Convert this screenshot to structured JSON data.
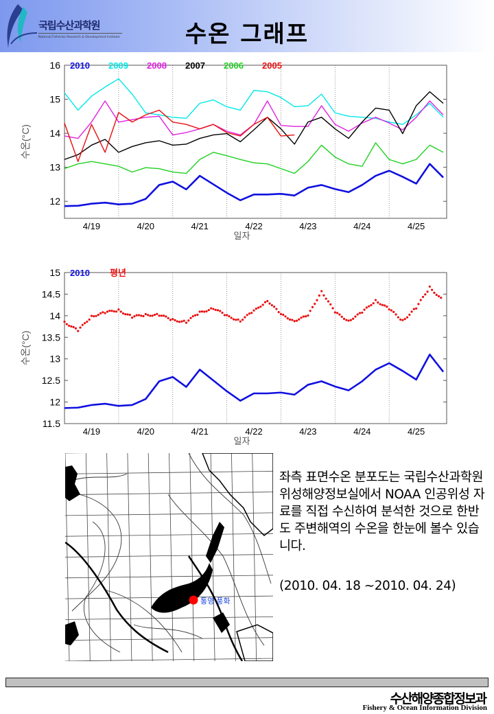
{
  "header": {
    "logo_name": "국립수산과학원",
    "logo_subtitle": "National Fisheries Research & Development Institute",
    "title": "수온 그래프"
  },
  "chart_data": [
    {
      "type": "line",
      "xlabel": "일자",
      "ylabel": "수온(°C)",
      "ylim": [
        11.5,
        16
      ],
      "yticks": [
        12,
        13,
        14,
        15,
        16
      ],
      "xtick_labels": [
        "4/19",
        "4/20",
        "4/21",
        "4/22",
        "4/23",
        "4/24",
        "4/25"
      ],
      "grid": "vertical dotted at day boundaries",
      "legend_placement": "top-left",
      "x": [
        "04-19 00:00",
        "04-19 06:00",
        "04-19 12:00",
        "04-19 18:00",
        "04-20 00:00",
        "04-20 06:00",
        "04-20 12:00",
        "04-20 18:00",
        "04-21 00:00",
        "04-21 06:00",
        "04-21 12:00",
        "04-21 18:00",
        "04-22 00:00",
        "04-22 06:00",
        "04-22 12:00",
        "04-22 18:00",
        "04-23 00:00",
        "04-23 06:00",
        "04-23 12:00",
        "04-23 18:00",
        "04-24 00:00",
        "04-24 06:00",
        "04-24 12:00",
        "04-24 18:00",
        "04-25 00:00",
        "04-25 06:00",
        "04-25 12:00",
        "04-25 18:00",
        "04-26 00:00"
      ],
      "series": [
        {
          "name": "2009",
          "color": "#00e8e8",
          "values": [
            15.19,
            14.68,
            15.09,
            15.36,
            15.6,
            15.15,
            14.6,
            14.54,
            14.47,
            14.44,
            14.88,
            14.98,
            14.78,
            14.68,
            15.26,
            15.22,
            15.05,
            14.78,
            14.81,
            15.15,
            14.6,
            14.5,
            14.47,
            14.44,
            14.33,
            14.26,
            14.54,
            14.88,
            14.47
          ]
        },
        {
          "name": "2008",
          "color": "#e020e0",
          "values": [
            13.92,
            13.85,
            14.33,
            14.95,
            14.33,
            14.4,
            14.47,
            14.5,
            13.95,
            14.02,
            14.13,
            14.26,
            14.06,
            13.95,
            14.26,
            14.95,
            14.23,
            14.2,
            14.2,
            14.81,
            14.26,
            14.06,
            14.3,
            14.47,
            14.3,
            14.1,
            14.47,
            14.95,
            14.54
          ]
        },
        {
          "name": "2007",
          "color": "#000000",
          "values": [
            13.23,
            13.37,
            13.65,
            13.82,
            13.44,
            13.61,
            13.72,
            13.78,
            13.65,
            13.68,
            13.85,
            13.95,
            13.99,
            13.75,
            14.1,
            14.47,
            14.13,
            13.68,
            14.33,
            14.47,
            14.13,
            13.85,
            14.33,
            14.74,
            14.68,
            13.99,
            14.81,
            15.22,
            14.88
          ]
        },
        {
          "name": "2006",
          "color": "#20d020",
          "values": [
            12.96,
            13.1,
            13.17,
            13.1,
            13.03,
            12.86,
            12.99,
            12.96,
            12.86,
            12.82,
            13.23,
            13.44,
            13.34,
            13.23,
            13.13,
            13.1,
            12.96,
            12.82,
            13.17,
            13.65,
            13.3,
            13.1,
            13.03,
            13.72,
            13.23,
            13.1,
            13.23,
            13.65,
            13.44
          ]
        },
        {
          "name": "2005",
          "color": "#e81010",
          "values": [
            14.3,
            13.17,
            14.26,
            13.44,
            14.61,
            14.33,
            14.54,
            14.68,
            14.33,
            14.26,
            14.13,
            14.26,
            14.02,
            13.92,
            14.26,
            14.47,
            13.92,
            13.95,
            null,
            null,
            null,
            null,
            null,
            null,
            null,
            null,
            null,
            null,
            null
          ]
        },
        {
          "name": "2010",
          "color": "#1010e0",
          "values": [
            11.86,
            11.87,
            11.93,
            11.96,
            11.91,
            11.93,
            12.07,
            12.48,
            12.58,
            12.35,
            12.75,
            12.5,
            12.25,
            12.03,
            12.2,
            12.2,
            12.22,
            12.17,
            12.4,
            12.48,
            12.36,
            12.27,
            12.48,
            12.75,
            12.9,
            12.72,
            12.52,
            13.1,
            12.7
          ]
        }
      ]
    },
    {
      "type": "line",
      "xlabel": "일자",
      "ylabel": "수온(°C)",
      "ylim": [
        11.5,
        15
      ],
      "yticks": [
        11.5,
        12,
        12.5,
        13,
        13.5,
        14,
        14.5,
        15
      ],
      "xtick_labels": [
        "4/19",
        "4/20",
        "4/21",
        "4/22",
        "4/23",
        "4/24",
        "4/25"
      ],
      "grid": "vertical dotted at day boundaries",
      "legend_placement": "top-left",
      "x": [
        "04-19 00:00",
        "04-19 06:00",
        "04-19 12:00",
        "04-19 18:00",
        "04-20 00:00",
        "04-20 06:00",
        "04-20 12:00",
        "04-20 18:00",
        "04-21 00:00",
        "04-21 06:00",
        "04-21 12:00",
        "04-21 18:00",
        "04-22 00:00",
        "04-22 06:00",
        "04-22 12:00",
        "04-22 18:00",
        "04-23 00:00",
        "04-23 06:00",
        "04-23 12:00",
        "04-23 18:00",
        "04-24 00:00",
        "04-24 06:00",
        "04-24 12:00",
        "04-24 18:00",
        "04-25 00:00",
        "04-25 06:00",
        "04-25 12:00",
        "04-25 18:00",
        "04-26 00:00"
      ],
      "series": [
        {
          "name": "2010",
          "color": "#1010e0",
          "style": "line",
          "values": [
            11.86,
            11.87,
            11.93,
            11.96,
            11.91,
            11.93,
            12.07,
            12.48,
            12.58,
            12.35,
            12.75,
            12.5,
            12.25,
            12.03,
            12.2,
            12.2,
            12.22,
            12.17,
            12.4,
            12.48,
            12.36,
            12.27,
            12.48,
            12.75,
            12.9,
            12.72,
            12.52,
            13.1,
            12.7
          ]
        },
        {
          "name": "평년",
          "color": "#e81010",
          "style": "dots",
          "values": [
            13.86,
            13.65,
            13.99,
            14.07,
            14.13,
            13.97,
            14.02,
            14.02,
            13.9,
            13.86,
            14.07,
            14.18,
            13.99,
            13.89,
            14.1,
            14.36,
            14.02,
            13.89,
            13.99,
            14.58,
            14.07,
            13.89,
            14.07,
            14.36,
            14.15,
            13.89,
            14.18,
            14.66,
            14.34
          ]
        }
      ]
    }
  ],
  "map": {
    "station_label": "통영 풍화",
    "station_color": "#ff0000"
  },
  "description": {
    "text": "좌측 표면수온 분포도는 국립수산과학원 위성해양정보실에서 NOAA 인공위성 자료를 직접 수신하여 분석한 것으로 한반도 주변해역의 수온을 한눈에 볼수 있습니다.",
    "period": "(2010. 04. 18 ~2010. 04. 24)"
  },
  "footer": {
    "org_ko": "수산해양종합정보과",
    "org_en": "Fishery & Ocean Information Division"
  }
}
